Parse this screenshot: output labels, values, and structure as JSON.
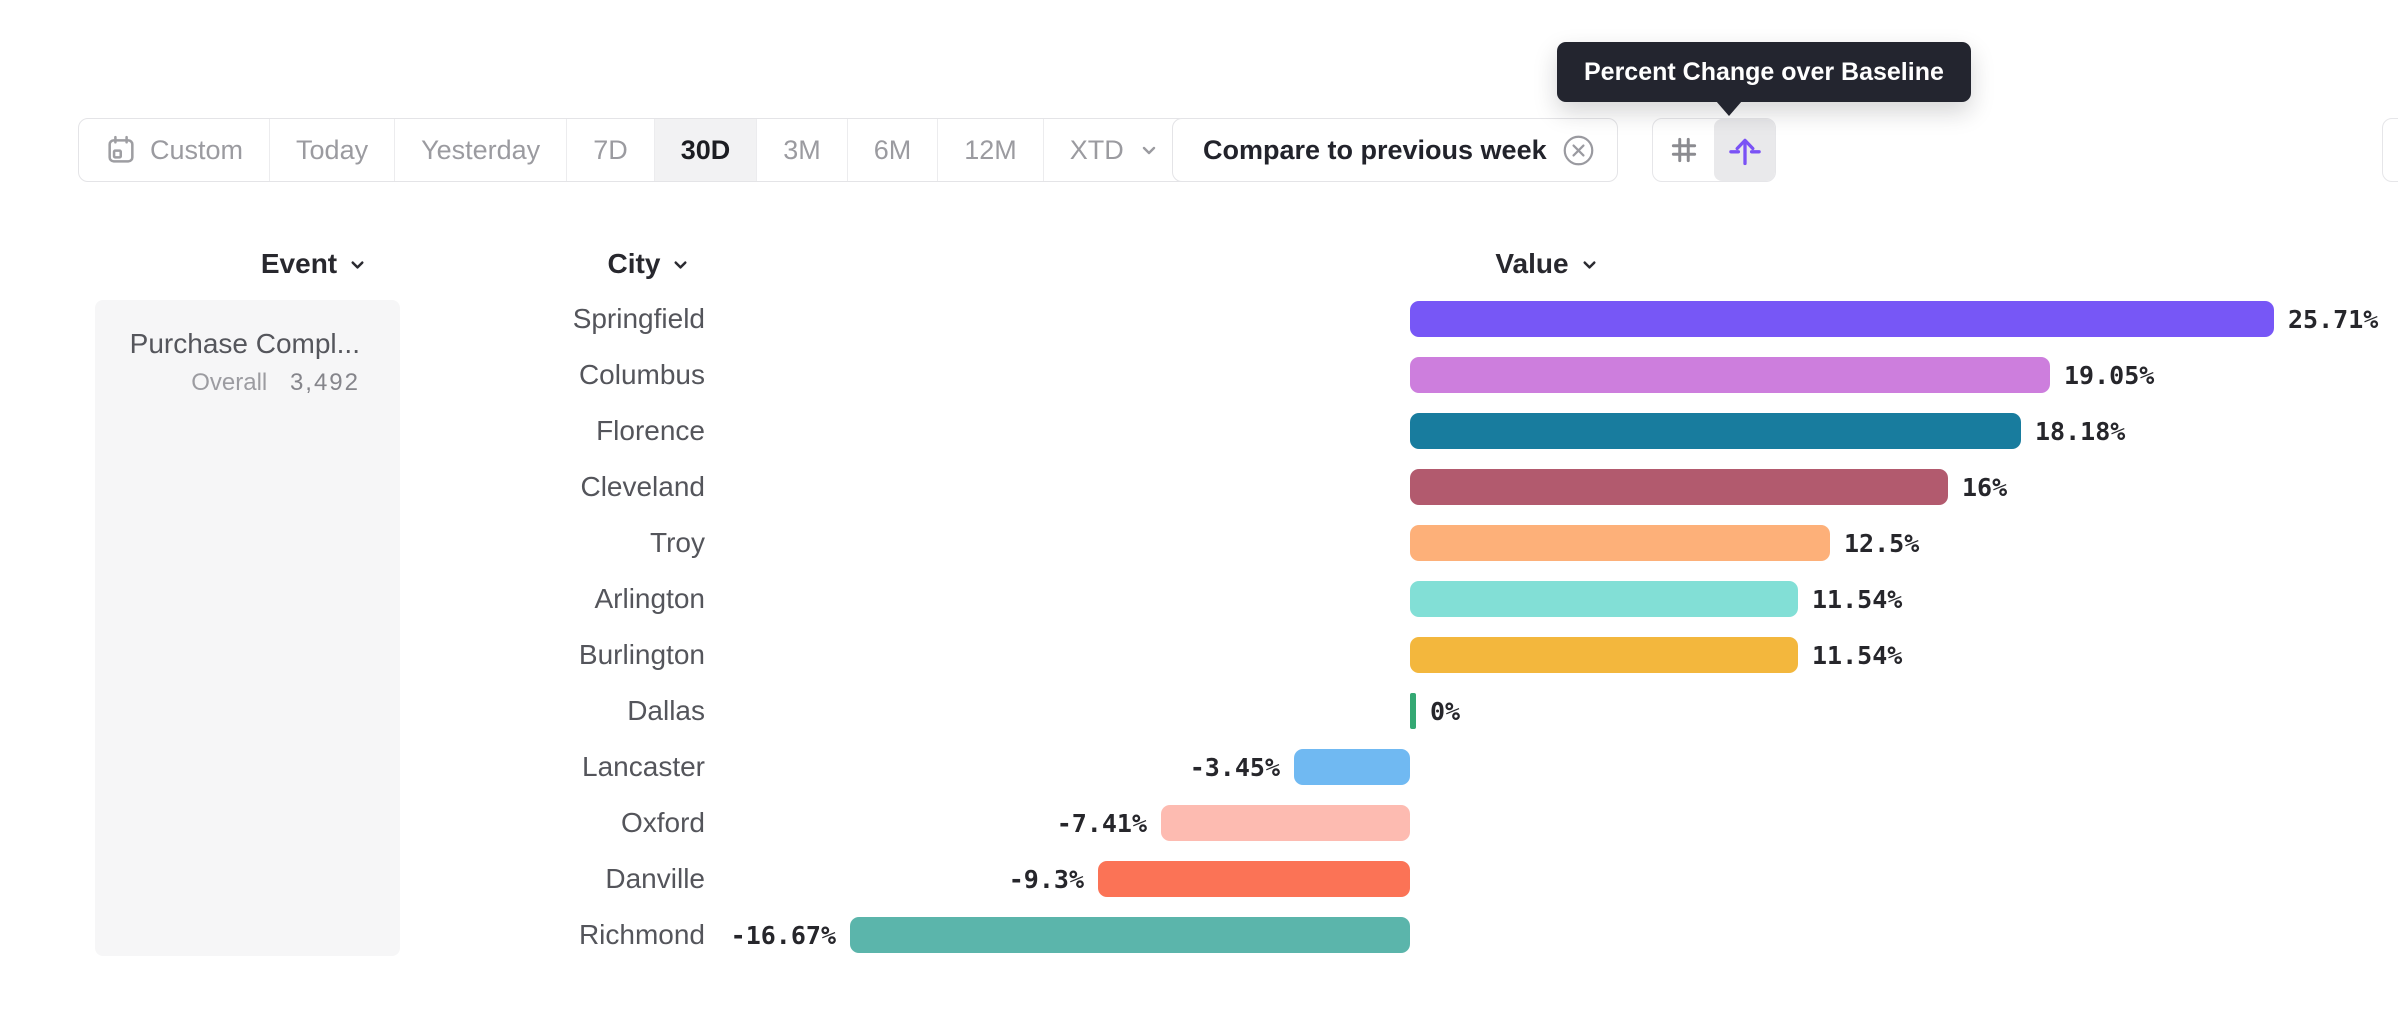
{
  "tooltip": {
    "text": "Percent Change over Baseline"
  },
  "toolbar": {
    "date_ranges": [
      {
        "label": "Custom",
        "icon": "calendar-icon"
      },
      {
        "label": "Today"
      },
      {
        "label": "Yesterday"
      },
      {
        "label": "7D"
      },
      {
        "label": "30D"
      },
      {
        "label": "3M"
      },
      {
        "label": "6M"
      },
      {
        "label": "12M"
      },
      {
        "label": "XTD",
        "icon": "chevron-down-icon"
      }
    ],
    "selected_range": "30D",
    "compare_chip": {
      "label": "Compare to previous week",
      "icon": "close-circle-icon"
    },
    "view_toggle": [
      {
        "name": "grid-view",
        "icon": "grid-icon",
        "selected": false
      },
      {
        "name": "percent-change-view",
        "icon": "arrow-up-from-line-icon",
        "selected": true
      }
    ]
  },
  "columns": {
    "event": "Event",
    "city": "City",
    "value": "Value"
  },
  "event_panel": {
    "event_name": "Purchase Compl...",
    "metric_label": "Overall",
    "metric_value": "3,492"
  },
  "chart_data": {
    "type": "bar",
    "orientation": "horizontal",
    "value_format": "percent",
    "baseline": 0,
    "xlim": [
      -16.67,
      25.71
    ],
    "categories": [
      "Springfield",
      "Columbus",
      "Florence",
      "Cleveland",
      "Troy",
      "Arlington",
      "Burlington",
      "Dallas",
      "Lancaster",
      "Oxford",
      "Danville",
      "Richmond"
    ],
    "values": [
      25.71,
      19.05,
      18.18,
      16,
      12.5,
      11.54,
      11.54,
      0,
      -3.45,
      -7.41,
      -9.3,
      -16.67
    ],
    "labels": [
      "25.71%",
      "19.05%",
      "18.18%",
      "16%",
      "12.5%",
      "11.54%",
      "11.54%",
      "0%",
      "-3.45%",
      "-7.41%",
      "-9.3%",
      "-16.67%"
    ],
    "colors": [
      "#7757F6",
      "#CD7EDD",
      "#187C9E",
      "#B25A6E",
      "#FDB079",
      "#82DFD6",
      "#F3B73D",
      "#34A873",
      "#70B9F2",
      "#FDBBB1",
      "#FB7356",
      "#5BB5AB"
    ]
  },
  "ui_colors": {
    "accent_purple": "#7A52F5",
    "tooltip_bg": "#23252F",
    "toolbar_text": "#9B9BA0",
    "selected_text": "#1C1D22",
    "selected_bg": "#F2F2F3",
    "panel_bg": "#F6F6F7",
    "border": "#E4E4E7"
  }
}
